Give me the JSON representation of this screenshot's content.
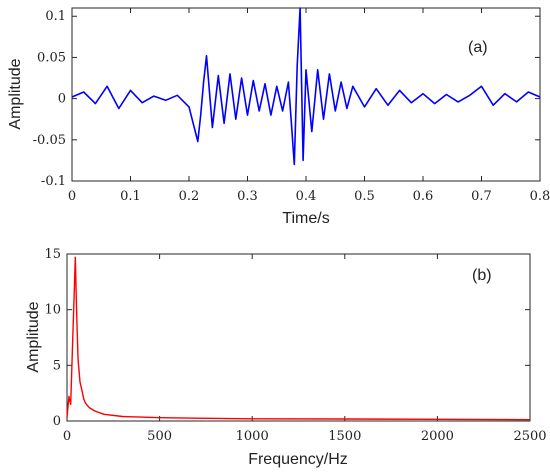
{
  "chart_data": [
    {
      "type": "line",
      "panel_label": "(a)",
      "xlabel": "Time/s",
      "ylabel": "Amplitude",
      "xlim": [
        0,
        0.8
      ],
      "ylim": [
        -0.1,
        0.11
      ],
      "xticks": [
        0,
        0.1,
        0.2,
        0.3,
        0.4,
        0.5,
        0.6,
        0.7,
        0.8
      ],
      "xtick_labels": [
        "0",
        "0.1",
        "0.2",
        "0.3",
        "0.4",
        "0.5",
        "0.6",
        "0.7",
        "0.8"
      ],
      "yticks": [
        -0.1,
        -0.05,
        0,
        0.05,
        0.1
      ],
      "ytick_labels": [
        "-0.1",
        "-0.05",
        "0",
        "0.05",
        "0.1"
      ],
      "grid": false,
      "series": [
        {
          "color": "#0000ff",
          "x": [
            0,
            0.02,
            0.04,
            0.06,
            0.08,
            0.1,
            0.12,
            0.14,
            0.16,
            0.18,
            0.2,
            0.215,
            0.22,
            0.225,
            0.23,
            0.24,
            0.25,
            0.26,
            0.27,
            0.28,
            0.29,
            0.3,
            0.31,
            0.32,
            0.33,
            0.34,
            0.35,
            0.36,
            0.37,
            0.375,
            0.38,
            0.385,
            0.39,
            0.395,
            0.4,
            0.41,
            0.42,
            0.43,
            0.44,
            0.45,
            0.46,
            0.47,
            0.48,
            0.5,
            0.52,
            0.54,
            0.56,
            0.58,
            0.6,
            0.62,
            0.64,
            0.66,
            0.68,
            0.7,
            0.72,
            0.74,
            0.76,
            0.78,
            0.8
          ],
          "y": [
            0.002,
            0.008,
            -0.006,
            0.015,
            -0.012,
            0.01,
            -0.005,
            0.003,
            -0.002,
            0.004,
            -0.01,
            -0.052,
            -0.02,
            0.02,
            0.052,
            -0.035,
            0.028,
            -0.03,
            0.03,
            -0.025,
            0.025,
            -0.02,
            0.022,
            -0.015,
            0.018,
            -0.02,
            0.015,
            -0.015,
            0.02,
            -0.03,
            -0.08,
            0.04,
            0.11,
            -0.075,
            0.035,
            -0.04,
            0.035,
            -0.025,
            0.03,
            -0.015,
            0.02,
            -0.012,
            0.015,
            -0.01,
            0.012,
            -0.008,
            0.01,
            -0.005,
            0.006,
            -0.006,
            0.005,
            -0.004,
            0.004,
            0.015,
            -0.008,
            0.006,
            -0.004,
            0.008,
            0.002
          ]
        }
      ]
    },
    {
      "type": "line",
      "panel_label": "(b)",
      "xlabel": "Frequency/Hz",
      "ylabel": "Amplitude",
      "xlim": [
        0,
        2500
      ],
      "ylim": [
        0,
        15
      ],
      "xticks": [
        0,
        500,
        1000,
        1500,
        2000,
        2500
      ],
      "xtick_labels": [
        "0",
        "500",
        "1000",
        "1500",
        "2000",
        "2500"
      ],
      "yticks": [
        0,
        5,
        10,
        15
      ],
      "ytick_labels": [
        "0",
        "5",
        "10",
        "15"
      ],
      "grid": false,
      "series": [
        {
          "color": "#ff0000",
          "x": [
            0,
            10,
            20,
            30,
            40,
            45,
            50,
            55,
            60,
            70,
            80,
            90,
            100,
            120,
            150,
            200,
            300,
            400,
            500,
            700,
            1000,
            1500,
            2000,
            2500
          ],
          "y": [
            0.3,
            2.2,
            1.5,
            7.0,
            12.0,
            14.7,
            11.0,
            8.0,
            5.5,
            3.5,
            2.8,
            2.0,
            1.6,
            1.2,
            0.9,
            0.6,
            0.4,
            0.35,
            0.3,
            0.25,
            0.2,
            0.18,
            0.15,
            0.12
          ]
        }
      ]
    }
  ]
}
